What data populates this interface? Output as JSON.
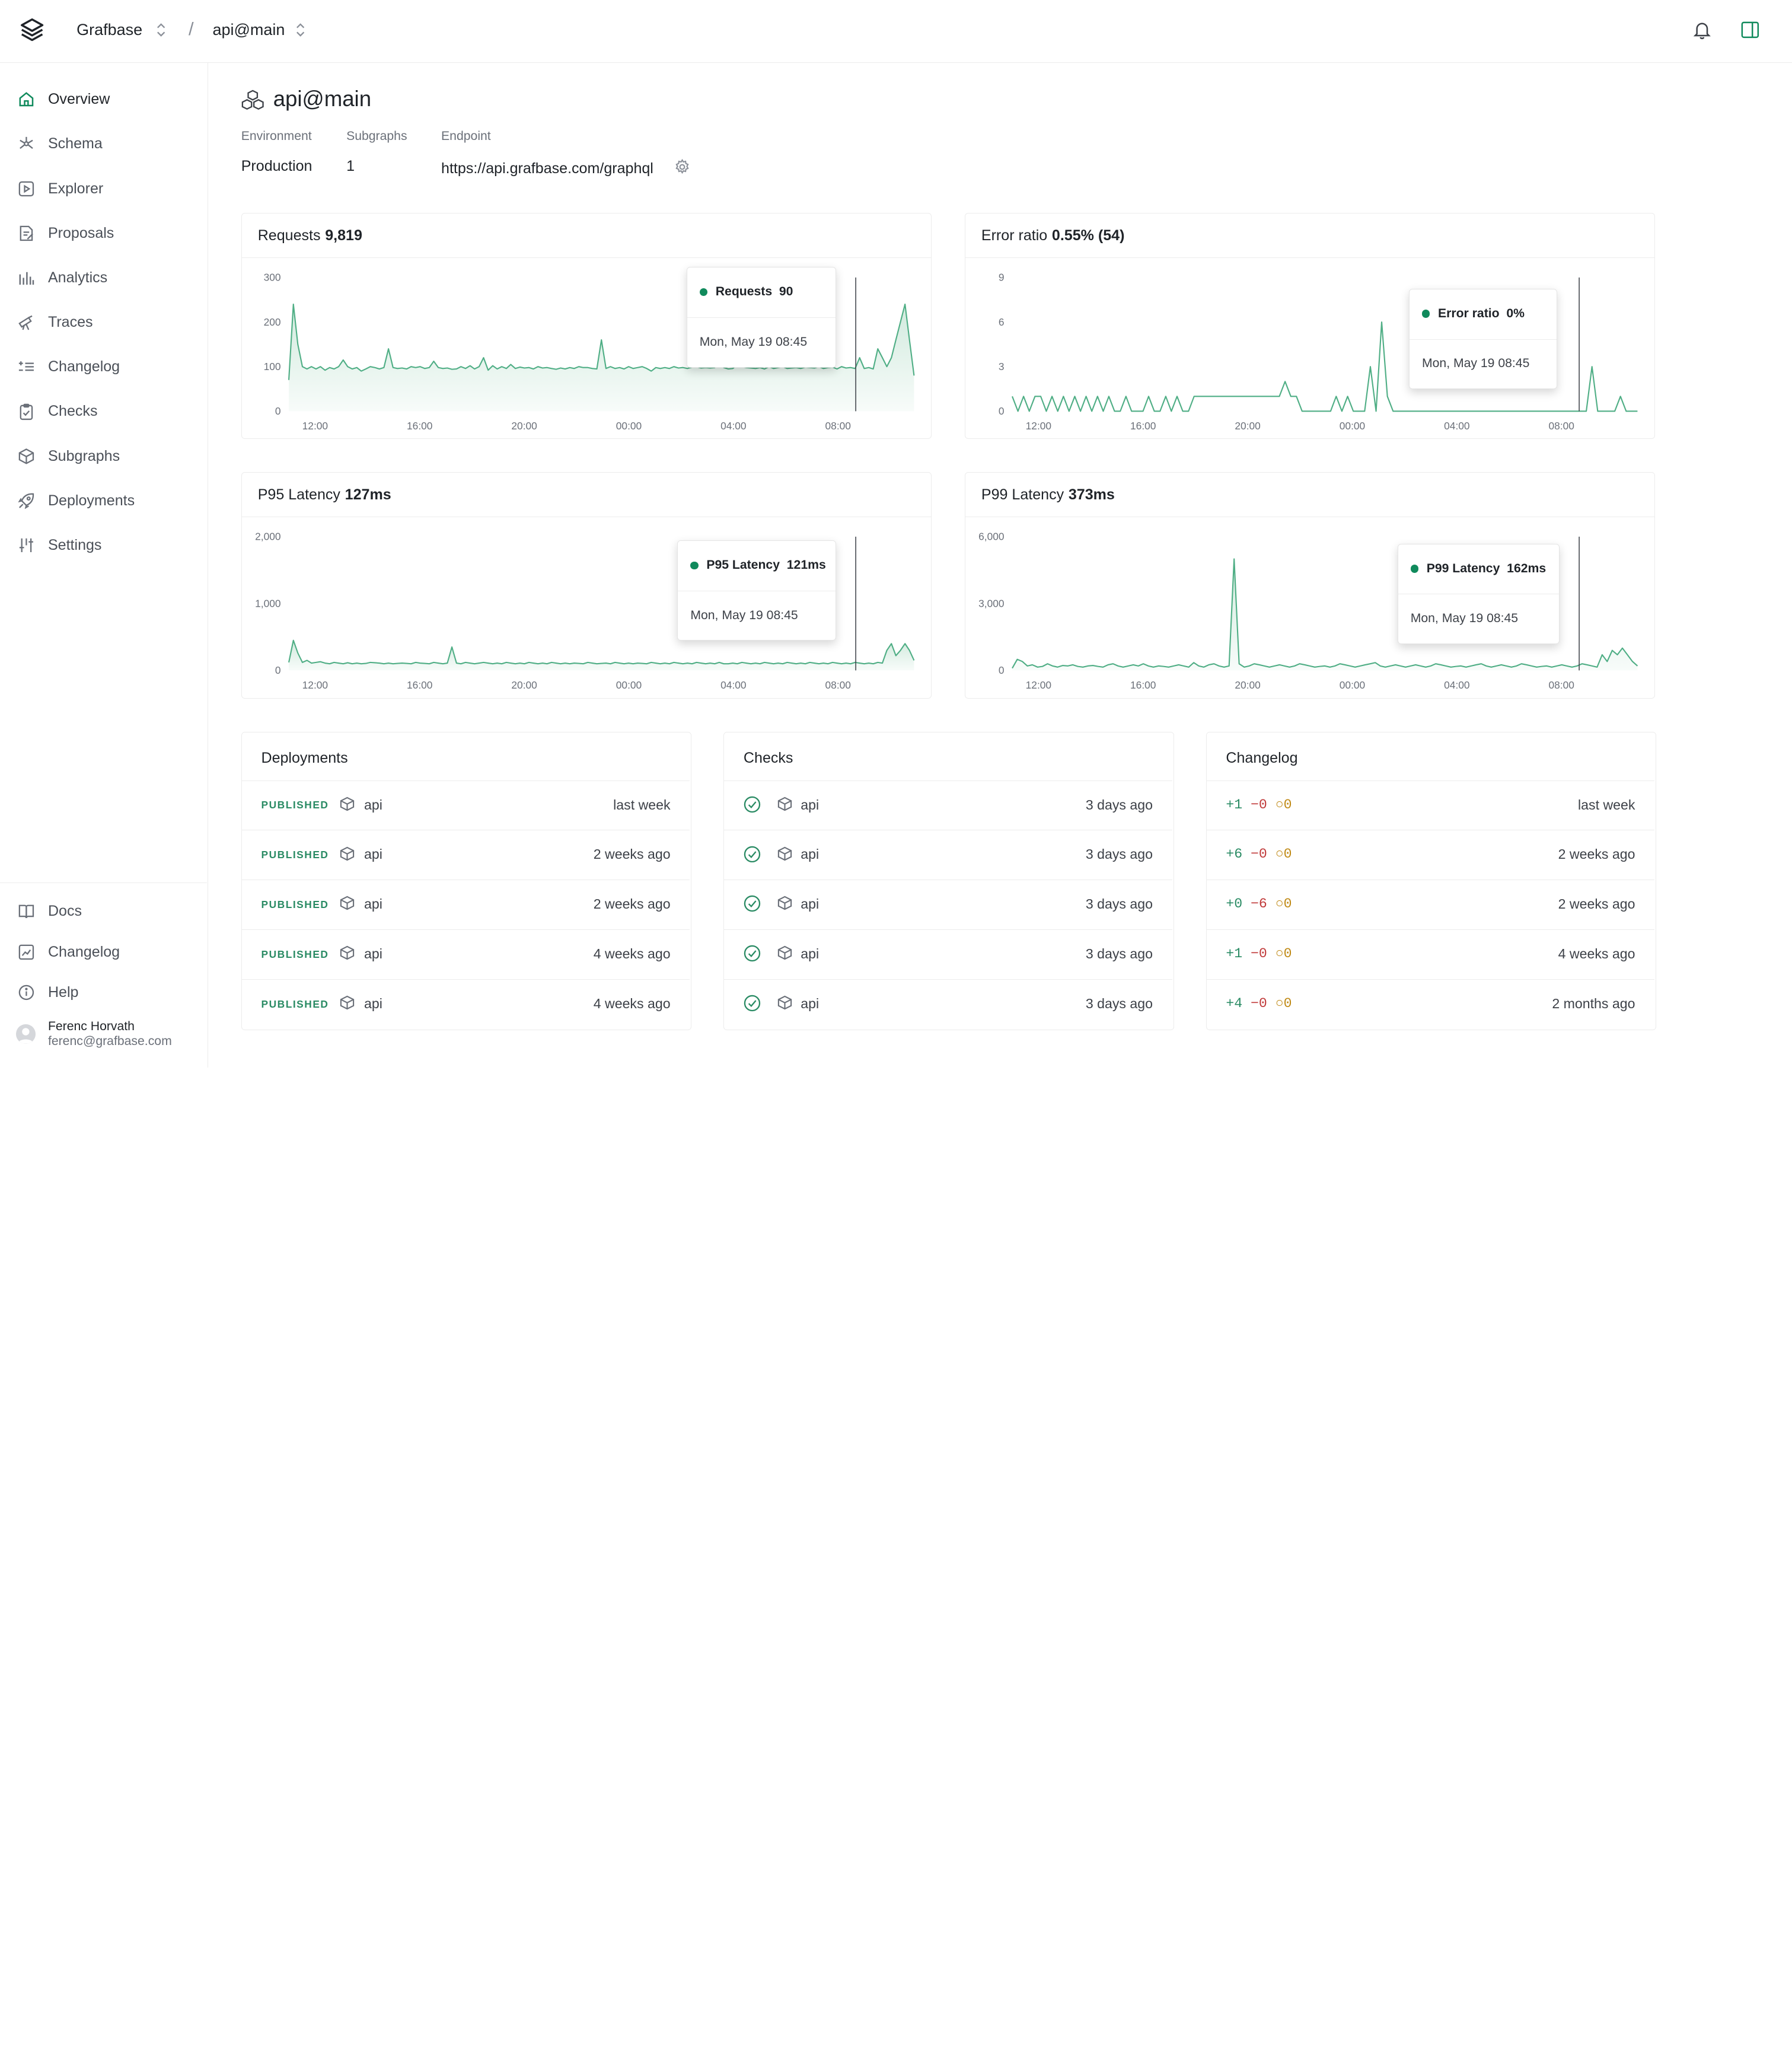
{
  "topbar": {
    "org": "Grafbase",
    "separator": "/",
    "branch": "api@main"
  },
  "sidebar": {
    "items": [
      {
        "label": "Overview",
        "icon": "home-icon",
        "active": true
      },
      {
        "label": "Schema",
        "icon": "schema-icon"
      },
      {
        "label": "Explorer",
        "icon": "play-icon"
      },
      {
        "label": "Proposals",
        "icon": "proposals-icon"
      },
      {
        "label": "Analytics",
        "icon": "analytics-icon"
      },
      {
        "label": "Traces",
        "icon": "traces-icon"
      },
      {
        "label": "Changelog",
        "icon": "changelog-icon"
      },
      {
        "label": "Checks",
        "icon": "checks-icon"
      },
      {
        "label": "Subgraphs",
        "icon": "cube-icon"
      },
      {
        "label": "Deployments",
        "icon": "rocket-icon"
      },
      {
        "label": "Settings",
        "icon": "settings-icon"
      }
    ],
    "bottom_items": [
      {
        "label": "Docs",
        "icon": "book-icon"
      },
      {
        "label": "Changelog",
        "icon": "changelog-bottom-icon"
      },
      {
        "label": "Help",
        "icon": "info-icon"
      }
    ],
    "user": {
      "name": "Ferenc Horvath",
      "email": "ferenc@grafbase.com"
    }
  },
  "header": {
    "title": "api@main",
    "environment_label": "Environment",
    "environment_value": "Production",
    "subgraphs_label": "Subgraphs",
    "subgraphs_value": "1",
    "endpoint_label": "Endpoint",
    "endpoint_value": "https://api.grafbase.com/graphql"
  },
  "colors": {
    "accent": "#108a5c",
    "area_fill": "#cfe9dc",
    "line": "#4fae85"
  },
  "cards": {
    "requests": {
      "title": "Requests",
      "value": "9,819",
      "tooltip_label": "Requests",
      "tooltip_value": "90",
      "tooltip_date": "Mon, May 19 08:45"
    },
    "error_ratio": {
      "title": "Error ratio",
      "value": "0.55% (54)",
      "tooltip_label": "Error ratio",
      "tooltip_value": "0%",
      "tooltip_date": "Mon, May 19 08:45"
    },
    "p95": {
      "title": "P95 Latency",
      "value": "127ms",
      "tooltip_label": "P95 Latency",
      "tooltip_value": "121ms",
      "tooltip_date": "Mon, May 19 08:45"
    },
    "p99": {
      "title": "P99 Latency",
      "value": "373ms",
      "tooltip_label": "P99 Latency",
      "tooltip_value": "162ms",
      "tooltip_date": "Mon, May 19 08:45"
    }
  },
  "chart_data": [
    {
      "type": "area",
      "title": "Requests",
      "x_ticks": [
        "12:00",
        "16:00",
        "20:00",
        "00:00",
        "04:00",
        "08:00"
      ],
      "y_ticks": [
        "0",
        "100",
        "200",
        "300"
      ],
      "ylim": [
        0,
        300
      ],
      "series": [
        {
          "name": "Requests",
          "values": [
            70,
            240,
            150,
            100,
            95,
            100,
            95,
            100,
            92,
            98,
            95,
            100,
            115,
            100,
            95,
            98,
            90,
            95,
            100,
            98,
            95,
            98,
            140,
            98,
            96,
            97,
            95,
            100,
            98,
            100,
            96,
            98,
            112,
            98,
            96,
            97,
            94,
            95,
            100,
            96,
            102,
            95,
            100,
            120,
            92,
            102,
            95,
            100,
            96,
            105,
            96,
            99,
            97,
            98,
            95,
            100,
            97,
            98,
            96,
            94,
            97,
            95,
            98,
            96,
            100,
            98,
            98,
            96,
            95,
            160,
            96,
            100,
            96,
            98,
            95,
            100,
            96,
            98,
            100,
            96,
            90,
            98,
            96,
            98,
            96,
            100,
            97,
            98,
            96,
            99,
            100,
            97,
            98,
            97,
            98,
            150,
            98,
            95,
            96,
            105,
            100,
            98,
            97,
            96,
            98,
            95,
            100,
            96,
            98,
            100,
            96,
            97,
            98,
            96,
            99,
            98,
            97,
            100,
            96,
            98,
            99,
            95,
            100,
            97,
            98,
            96,
            120,
            96,
            98,
            95,
            140,
            120,
            100,
            120,
            160,
            200,
            240,
            160,
            80
          ]
        }
      ]
    },
    {
      "type": "line",
      "title": "Error ratio",
      "x_ticks": [
        "12:00",
        "16:00",
        "20:00",
        "00:00",
        "04:00",
        "08:00"
      ],
      "y_ticks": [
        "0",
        "3",
        "6",
        "9"
      ],
      "ylim": [
        0,
        9
      ],
      "series": [
        {
          "name": "Error ratio",
          "values": [
            1,
            0,
            1,
            0,
            1,
            1,
            0,
            1,
            0,
            1,
            0,
            1,
            0,
            1,
            0,
            1,
            0,
            1,
            0,
            0,
            1,
            0,
            0,
            0,
            1,
            0,
            0,
            1,
            0,
            1,
            0,
            0,
            1,
            1,
            1,
            1,
            1,
            1,
            1,
            1,
            1,
            1,
            1,
            1,
            1,
            1,
            1,
            1,
            2,
            1,
            1,
            0,
            0,
            0,
            0,
            0,
            0,
            1,
            0,
            1,
            0,
            0,
            0,
            3,
            0,
            6,
            1,
            0,
            0,
            0,
            0,
            0,
            0,
            0,
            0,
            0,
            0,
            0,
            0,
            0,
            0,
            0,
            0,
            0,
            0,
            0,
            0,
            0,
            0,
            0,
            0,
            0,
            0,
            0,
            0,
            0,
            0,
            0,
            0,
            0,
            0,
            0,
            3,
            0,
            0,
            0,
            0,
            1,
            0,
            0,
            0
          ]
        }
      ]
    },
    {
      "type": "area",
      "title": "P95 Latency",
      "x_ticks": [
        "12:00",
        "16:00",
        "20:00",
        "00:00",
        "04:00",
        "08:00"
      ],
      "y_ticks": [
        "0",
        "1,000",
        "2,000"
      ],
      "ylim": [
        0,
        2000
      ],
      "series": [
        {
          "name": "P95 Latency",
          "values": [
            120,
            450,
            260,
            120,
            150,
            110,
            120,
            130,
            110,
            100,
            120,
            110,
            100,
            115,
            100,
            110,
            100,
            105,
            120,
            115,
            110,
            100,
            110,
            100,
            105,
            110,
            105,
            100,
            120,
            110,
            105,
            100,
            120,
            110,
            100,
            110,
            350,
            110,
            100,
            120,
            110,
            100,
            110,
            120,
            110,
            100,
            110,
            100,
            120,
            110,
            100,
            110,
            100,
            120,
            110,
            100,
            110,
            100,
            120,
            110,
            100,
            110,
            100,
            110,
            105,
            100,
            120,
            110,
            100,
            105,
            110,
            100,
            120,
            110,
            100,
            110,
            100,
            110,
            105,
            100,
            120,
            110,
            100,
            110,
            100,
            120,
            110,
            100,
            110,
            100,
            120,
            110,
            100,
            110,
            100,
            120,
            100,
            100,
            110,
            100,
            120,
            110,
            100,
            110,
            100,
            120,
            110,
            100,
            110,
            100,
            120,
            110,
            100,
            110,
            100,
            120,
            110,
            100,
            110,
            100,
            120,
            110,
            100,
            110,
            100,
            120,
            110,
            100,
            110,
            100,
            120,
            110,
            300,
            400,
            220,
            300,
            400,
            300,
            150
          ]
        }
      ]
    },
    {
      "type": "area",
      "title": "P99 Latency",
      "x_ticks": [
        "12:00",
        "16:00",
        "20:00",
        "00:00",
        "04:00",
        "08:00"
      ],
      "y_ticks": [
        "0",
        "3,000",
        "6,000"
      ],
      "ylim": [
        0,
        6000
      ],
      "series": [
        {
          "name": "P99 Latency",
          "values": [
            100,
            500,
            400,
            200,
            250,
            150,
            180,
            300,
            200,
            150,
            220,
            200,
            250,
            180,
            150,
            200,
            220,
            180,
            150,
            250,
            300,
            200,
            150,
            200,
            250,
            200,
            300,
            200,
            150,
            200,
            180,
            150,
            200,
            250,
            200,
            150,
            350,
            200,
            150,
            250,
            300,
            200,
            150,
            200,
            5000,
            300,
            150,
            200,
            300,
            250,
            200,
            150,
            200,
            250,
            200,
            150,
            200,
            300,
            250,
            200,
            150,
            180,
            200,
            150,
            200,
            300,
            250,
            200,
            150,
            200,
            250,
            300,
            350,
            200,
            150,
            200,
            250,
            200,
            150,
            200,
            250,
            200,
            150,
            200,
            300,
            250,
            200,
            150,
            180,
            200,
            150,
            200,
            250,
            300,
            200,
            150,
            200,
            250,
            200,
            150,
            200,
            300,
            250,
            200,
            150,
            180,
            200,
            150,
            200,
            250,
            200,
            150,
            200,
            300,
            250,
            200,
            150,
            700,
            400,
            900,
            700,
            1000,
            700,
            400,
            200
          ]
        }
      ]
    }
  ],
  "deployments": {
    "title": "Deployments",
    "rows": [
      {
        "status": "PUBLISHED",
        "name": "api",
        "time": "last week"
      },
      {
        "status": "PUBLISHED",
        "name": "api",
        "time": "2 weeks ago"
      },
      {
        "status": "PUBLISHED",
        "name": "api",
        "time": "2 weeks ago"
      },
      {
        "status": "PUBLISHED",
        "name": "api",
        "time": "4 weeks ago"
      },
      {
        "status": "PUBLISHED",
        "name": "api",
        "time": "4 weeks ago"
      }
    ]
  },
  "checks": {
    "title": "Checks",
    "rows": [
      {
        "name": "api",
        "time": "3 days ago"
      },
      {
        "name": "api",
        "time": "3 days ago"
      },
      {
        "name": "api",
        "time": "3 days ago"
      },
      {
        "name": "api",
        "time": "3 days ago"
      },
      {
        "name": "api",
        "time": "3 days ago"
      }
    ]
  },
  "changelog": {
    "title": "Changelog",
    "rows": [
      {
        "added": "+1",
        "removed": "−0",
        "modified": "○0",
        "time": "last week"
      },
      {
        "added": "+6",
        "removed": "−0",
        "modified": "○0",
        "time": "2 weeks ago"
      },
      {
        "added": "+0",
        "removed": "−6",
        "modified": "○0",
        "time": "2 weeks ago"
      },
      {
        "added": "+1",
        "removed": "−0",
        "modified": "○0",
        "time": "4 weeks ago"
      },
      {
        "added": "+4",
        "removed": "−0",
        "modified": "○0",
        "time": "2 months ago"
      }
    ]
  }
}
